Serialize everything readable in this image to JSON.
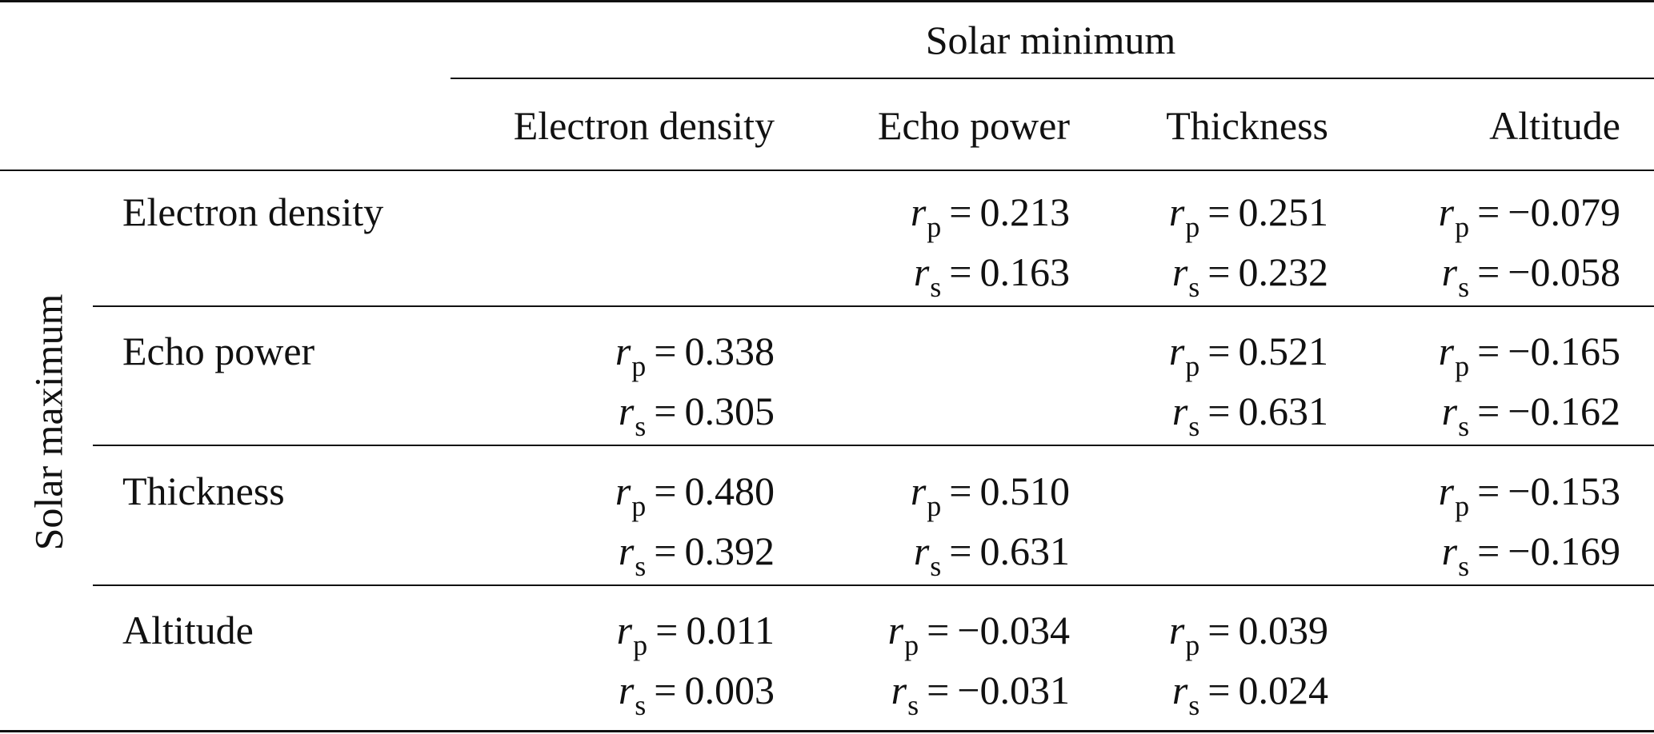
{
  "table": {
    "column_group": "Solar minimum",
    "row_group": "Solar maximum",
    "columns": [
      "Electron density",
      "Echo power",
      "Thickness",
      "Altitude"
    ],
    "rows": [
      {
        "label": "Electron density",
        "cells": [
          null,
          {
            "rp": "0.213",
            "rs": "0.163"
          },
          {
            "rp": "0.251",
            "rs": "0.232"
          },
          {
            "rp": "−0.079",
            "rs": "−0.058"
          }
        ]
      },
      {
        "label": "Echo power",
        "cells": [
          {
            "rp": "0.338",
            "rs": "0.305"
          },
          null,
          {
            "rp": "0.521",
            "rs": "0.631"
          },
          {
            "rp": "−0.165",
            "rs": "−0.162"
          }
        ]
      },
      {
        "label": "Thickness",
        "cells": [
          {
            "rp": "0.480",
            "rs": "0.392"
          },
          {
            "rp": "0.510",
            "rs": "0.631"
          },
          null,
          {
            "rp": "−0.153",
            "rs": "−0.169"
          }
        ]
      },
      {
        "label": "Altitude",
        "cells": [
          {
            "rp": "0.011",
            "rs": "0.003"
          },
          {
            "rp": "−0.034",
            "rs": "−0.031"
          },
          {
            "rp": "0.039",
            "rs": "0.024"
          },
          null
        ]
      }
    ],
    "symbols": {
      "r": "r",
      "p": "p",
      "s": "s",
      "equals": "="
    }
  }
}
